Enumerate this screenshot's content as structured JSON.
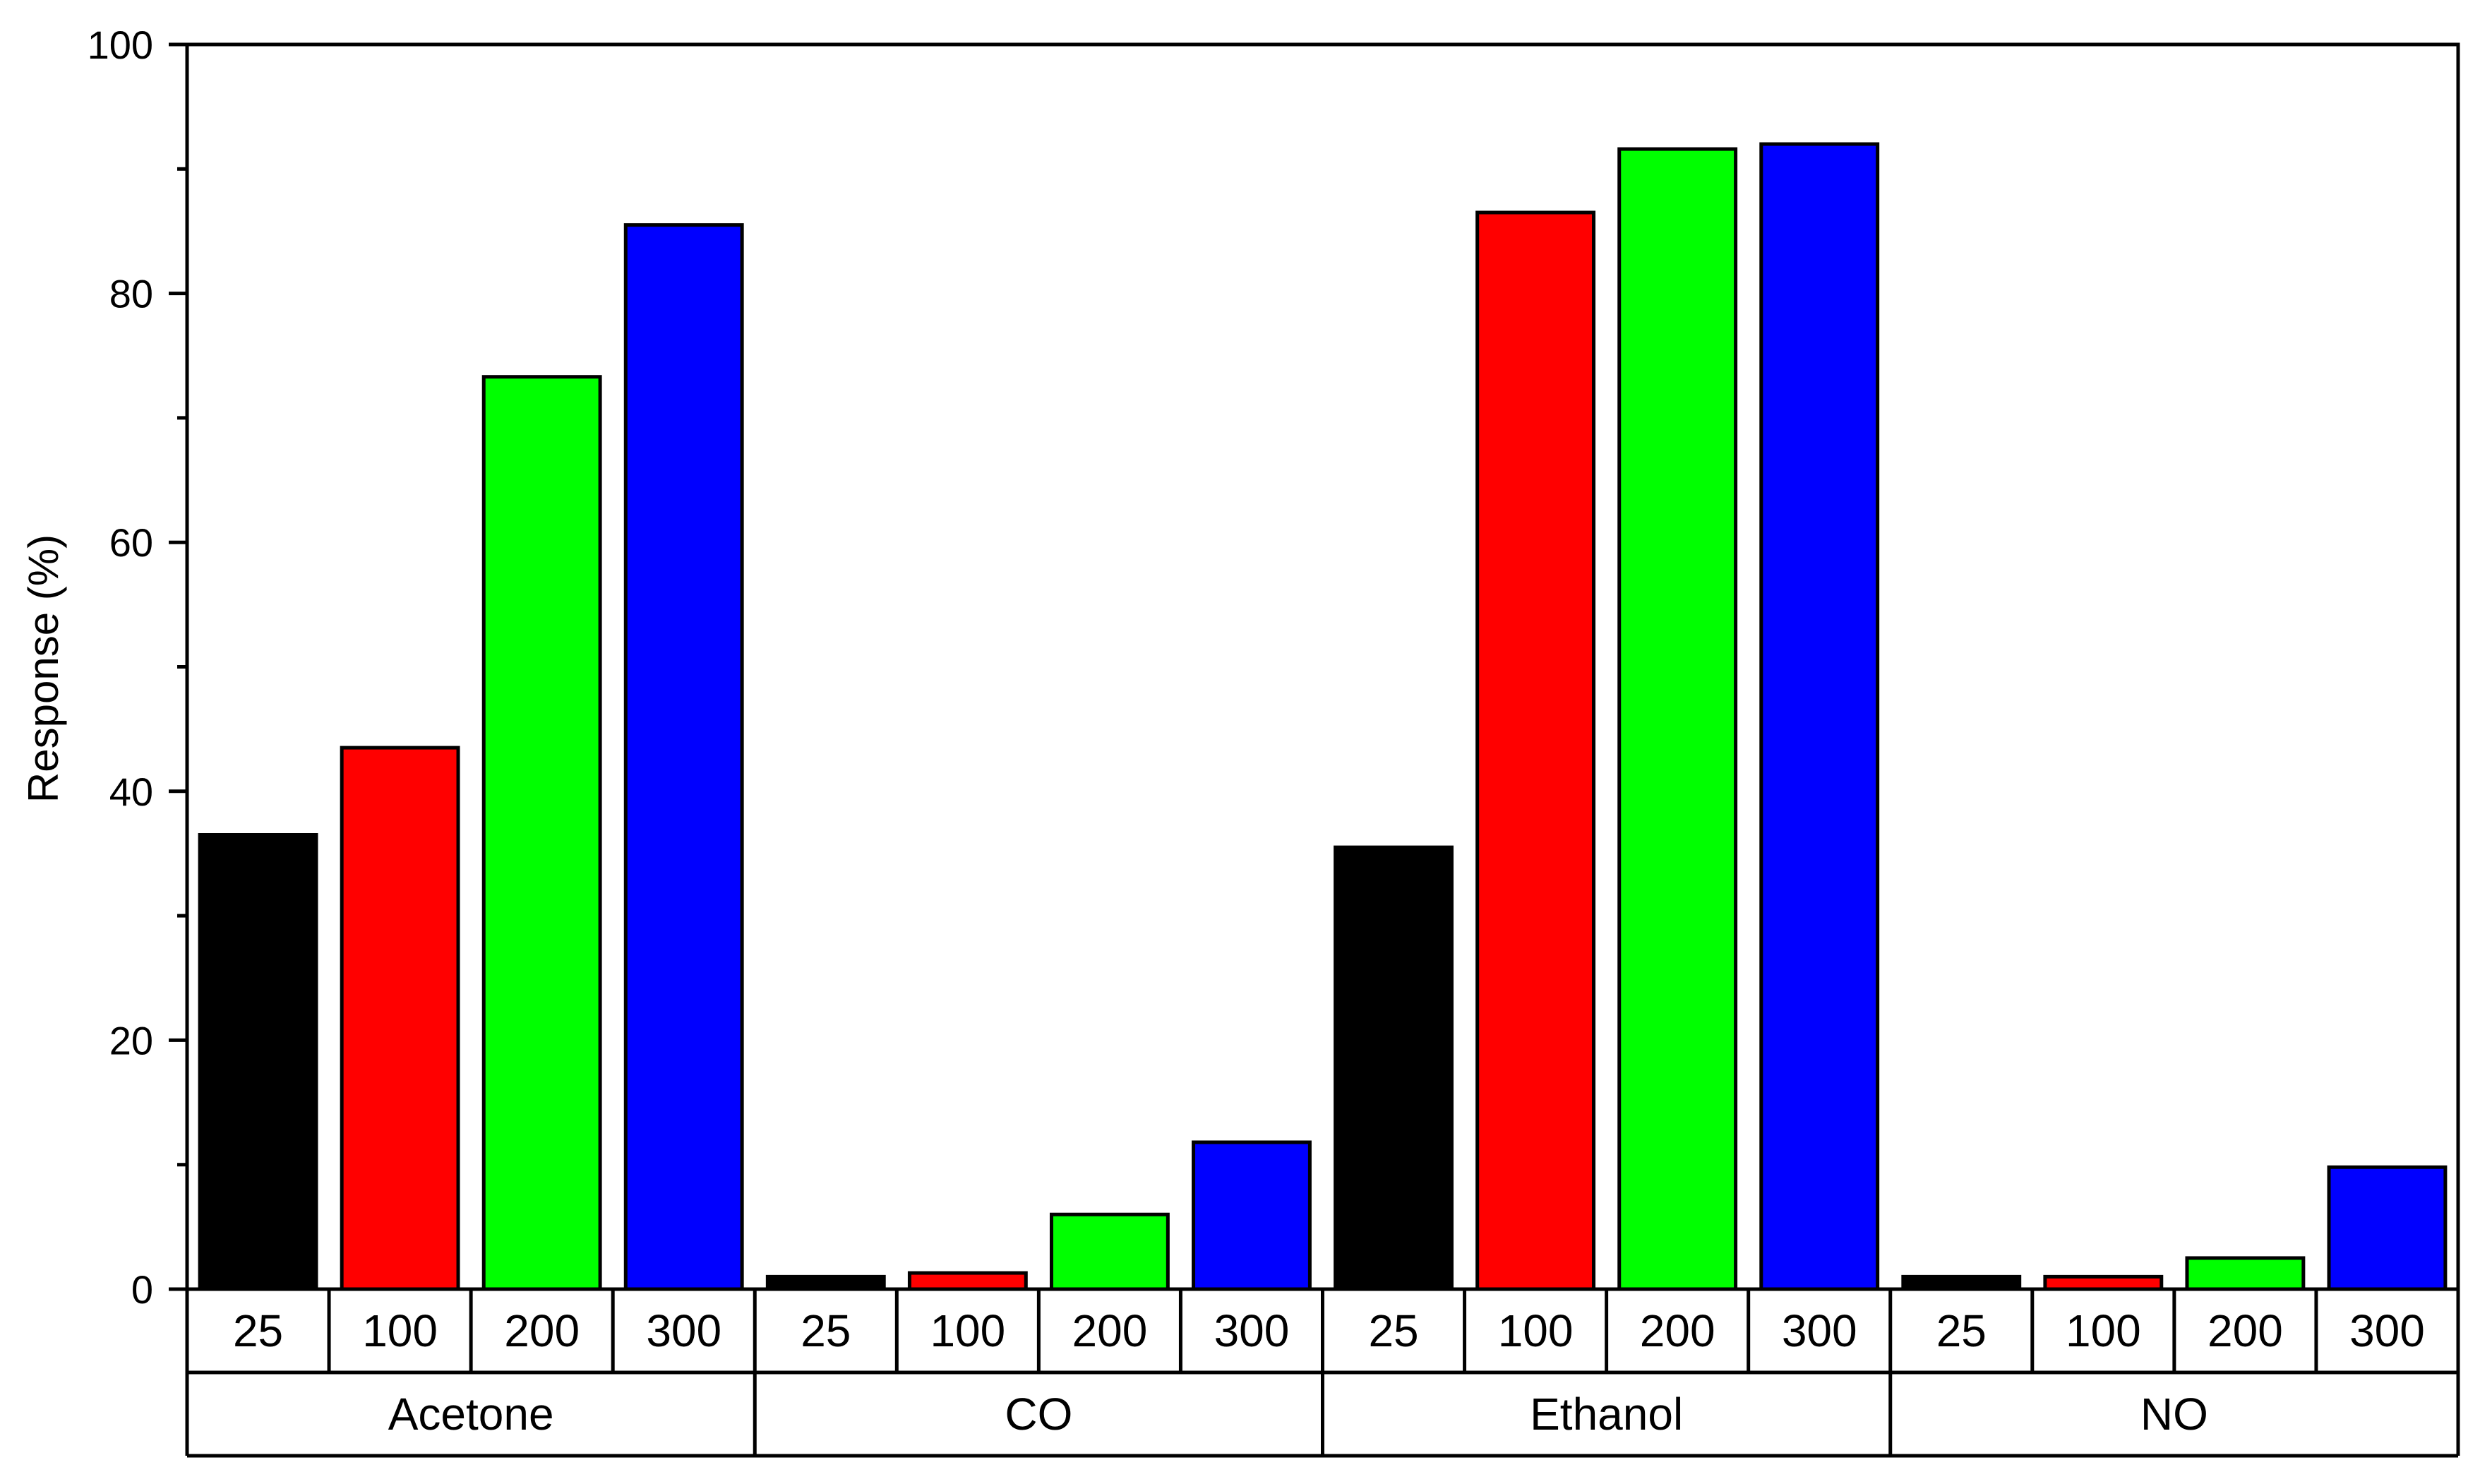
{
  "chart_data": {
    "type": "bar",
    "title": "",
    "xlabel": "",
    "ylabel": "Response (%)",
    "ylim": [
      0,
      100
    ],
    "yticks": [
      0,
      20,
      40,
      60,
      80,
      100
    ],
    "y_minor_ticks": [
      10,
      30,
      50,
      70,
      90
    ],
    "groups": [
      "Acetone",
      "CO",
      "Ethanol",
      "NO"
    ],
    "subcategories": [
      "25",
      "100",
      "200",
      "300"
    ],
    "series": [
      {
        "values": [
          36.5,
          1.0,
          35.5,
          1.0
        ],
        "color": "#000000"
      },
      {
        "values": [
          43.5,
          1.3,
          86.5,
          1.0
        ],
        "color": "#ff0000"
      },
      {
        "values": [
          73.3,
          6.0,
          91.6,
          2.5
        ],
        "color": "#00ff00"
      },
      {
        "values": [
          85.5,
          11.8,
          92.0,
          9.8
        ],
        "color": "#0000ff"
      }
    ],
    "grid": false,
    "legend": "none"
  }
}
